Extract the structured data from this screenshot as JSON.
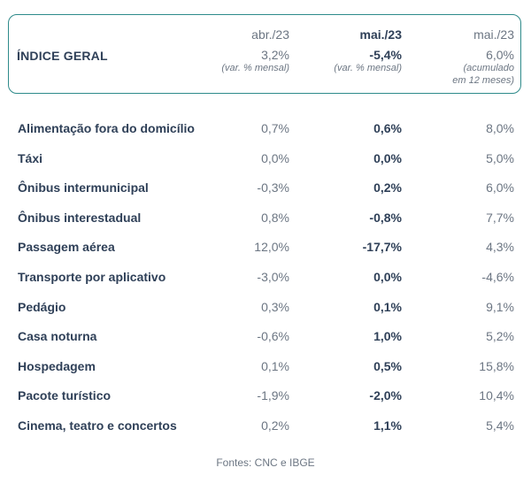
{
  "header": {
    "title": "ÍNDICE GERAL",
    "columns": [
      {
        "month": "abr./23",
        "value": "3,2%",
        "note": "(var. % mensal)"
      },
      {
        "month": "mai./23",
        "value": "-5,4%",
        "note": "(var. % mensal)"
      },
      {
        "month": "mai./23",
        "value": "6,0%",
        "note_line1": "(acumulado",
        "note_line2": "em 12 meses)"
      }
    ]
  },
  "rows": [
    {
      "label": "Alimentação fora do domicílio",
      "abr": "0,7%",
      "mai": "0,6%",
      "acum": "8,0%"
    },
    {
      "label": "Táxi",
      "abr": "0,0%",
      "mai": "0,0%",
      "acum": "5,0%"
    },
    {
      "label": "Ônibus intermunicipal",
      "abr": "-0,3%",
      "mai": "0,2%",
      "acum": "6,0%"
    },
    {
      "label": "Ônibus interestadual",
      "abr": "0,8%",
      "mai": "-0,8%",
      "acum": "7,7%"
    },
    {
      "label": "Passagem aérea",
      "abr": "12,0%",
      "mai": "-17,7%",
      "acum": "4,3%"
    },
    {
      "label": "Transporte por aplicativo",
      "abr": "-3,0%",
      "mai": "0,0%",
      "acum": "-4,6%"
    },
    {
      "label": "Pedágio",
      "abr": "0,3%",
      "mai": "0,1%",
      "acum": "9,1%"
    },
    {
      "label": "Casa noturna",
      "abr": "-0,6%",
      "mai": "1,0%",
      "acum": "5,2%"
    },
    {
      "label": "Hospedagem",
      "abr": "0,1%",
      "mai": "0,5%",
      "acum": "15,8%"
    },
    {
      "label": "Pacote turístico",
      "abr": "-1,9%",
      "mai": "-2,0%",
      "acum": "10,4%"
    },
    {
      "label": "Cinema, teatro e concertos",
      "abr": "0,2%",
      "mai": "1,1%",
      "acum": "5,4%"
    }
  ],
  "footer": "Fontes: CNC e IBGE",
  "colors": {
    "border": "#2e8a8a",
    "dark_text": "#2f4058",
    "muted_text": "#6c7683"
  }
}
